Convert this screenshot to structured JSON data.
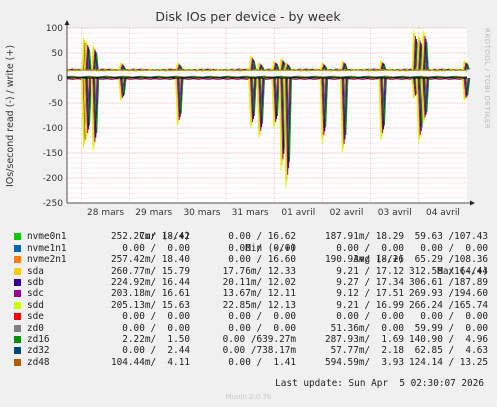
{
  "chart_data": {
    "type": "line",
    "title": "Disk IOs per device - by week",
    "ylabel": "IOs/second read (-) / write (+)",
    "side_label": "RRDTOOL / TOBI OETIKER",
    "ylim": [
      -250,
      100
    ],
    "yticks": [
      100,
      50,
      0,
      -50,
      -100,
      -150,
      -200,
      -250
    ],
    "xticks": [
      "28 mars",
      "29 mars",
      "30 mars",
      "31 mars",
      "01 avril",
      "02 avril",
      "03 avril",
      "04 avril"
    ],
    "x_range": [
      -0.3,
      8.0
    ],
    "write_baseline": 17,
    "events": [
      {
        "t": 0.08,
        "write": 80,
        "read": -140
      },
      {
        "t": 0.13,
        "write": 75,
        "read": -125
      },
      {
        "t": 0.28,
        "write": 65,
        "read": -145
      },
      {
        "t": 0.85,
        "write": 30,
        "read": -45
      },
      {
        "t": 2.03,
        "write": 30,
        "read": -95
      },
      {
        "t": 3.55,
        "write": 45,
        "read": -100
      },
      {
        "t": 3.72,
        "write": 30,
        "read": -120
      },
      {
        "t": 4.03,
        "write": 35,
        "read": -100
      },
      {
        "t": 4.18,
        "write": 40,
        "read": -185
      },
      {
        "t": 4.28,
        "write": 30,
        "read": -220
      },
      {
        "t": 5.03,
        "write": 30,
        "read": -130
      },
      {
        "t": 5.45,
        "write": 35,
        "read": -150
      },
      {
        "t": 6.25,
        "write": 35,
        "read": -125
      },
      {
        "t": 6.93,
        "write": 95,
        "read": -40
      },
      {
        "t": 7.03,
        "write": 85,
        "read": -130
      },
      {
        "t": 7.13,
        "write": 95,
        "read": -90
      },
      {
        "t": 7.98,
        "write": 35,
        "read": -45
      }
    ]
  },
  "legend": {
    "headers": {
      "cur": "Cur (-/+)",
      "min": "Min (-/+)",
      "avg": "Avg (-/+)",
      "max": "Max (-/+)"
    },
    "series": [
      {
        "name": "nvme0n1",
        "color": "#00cc00",
        "cur": "252.27m/ 18.42",
        "min": "0.00 / 16.62",
        "avg": "187.91m/ 18.29",
        "max": "59.63 /107.43"
      },
      {
        "name": "nvme1n1",
        "color": "#0066b3",
        "cur": "0.00 /  0.00",
        "min": "0.00 /  0.00",
        "avg": "0.00 /  0.00",
        "max": "0.00 /  0.00"
      },
      {
        "name": "nvme2n1",
        "color": "#ff8000",
        "cur": "257.42m/ 18.40",
        "min": "0.00 / 16.60",
        "avg": "190.93m/ 18.26",
        "max": "65.29 /108.36"
      },
      {
        "name": "sda",
        "color": "#ffcc00",
        "cur": "260.77m/ 15.79",
        "min": "17.76m/ 12.33",
        "avg": "9.21 / 17.12",
        "max": "312.58 /164.44"
      },
      {
        "name": "sdb",
        "color": "#330099",
        "cur": "224.92m/ 16.44",
        "min": "20.11m/ 12.02",
        "avg": "9.27 / 17.34",
        "max": "306.61 /187.89"
      },
      {
        "name": "sdc",
        "color": "#990099",
        "cur": "203.18m/ 16.61",
        "min": "13.67m/ 12.11",
        "avg": "9.12 / 17.51",
        "max": "269.93 /194.60"
      },
      {
        "name": "sdd",
        "color": "#ccff00",
        "cur": "205.13m/ 15.63",
        "min": "22.85m/ 12.13",
        "avg": "9.21 / 16.99",
        "max": "266.24 /165.74"
      },
      {
        "name": "sde",
        "color": "#ff0000",
        "cur": "0.00 /  0.00",
        "min": "0.00 /  0.00",
        "avg": "0.00 /  0.00",
        "max": "0.00 /  0.00"
      },
      {
        "name": "zd0",
        "color": "#808080",
        "cur": "0.00 /  0.00",
        "min": "0.00 /  0.00",
        "avg": "51.36m/  0.00",
        "max": "59.99 /  0.00"
      },
      {
        "name": "zd16",
        "color": "#008f00",
        "cur": "2.22m/  1.50",
        "min": "0.00 /639.27m",
        "avg": "287.93m/  1.69",
        "max": "140.90 /  4.96"
      },
      {
        "name": "zd32",
        "color": "#00487d",
        "cur": "0.00 /  2.44",
        "min": "0.00 /738.17m",
        "avg": "57.77m/  2.18",
        "max": "62.85 /  4.63"
      },
      {
        "name": "zd48",
        "color": "#b35a00",
        "cur": "104.44m/  4.11",
        "min": "0.00 /  1.41",
        "avg": "594.59m/  3.93",
        "max": "124.14 / 13.25"
      }
    ]
  },
  "last_update": "Last update: Sun Apr  5 02:30:07 2026",
  "footer": "Munin 2.0.76"
}
